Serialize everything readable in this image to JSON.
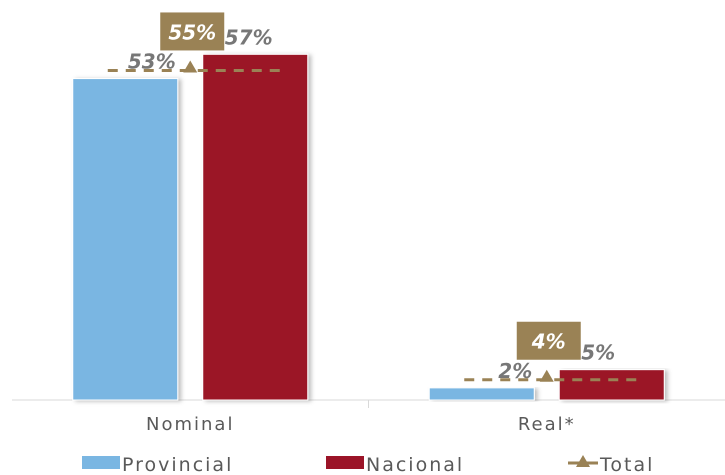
{
  "chart_data": {
    "type": "bar",
    "categories": [
      "Nominal",
      "Real*"
    ],
    "series": [
      {
        "name": "Provincial",
        "type": "bar",
        "values": [
          53,
          2
        ],
        "labels": [
          "53%",
          "2%"
        ]
      },
      {
        "name": "Nacional",
        "type": "bar",
        "values": [
          57,
          5
        ],
        "labels": [
          "57%",
          "5%"
        ]
      },
      {
        "name": "Total",
        "type": "line",
        "values": [
          55,
          4
        ],
        "labels": [
          "55%",
          "4%"
        ]
      }
    ],
    "ylim": [
      0,
      62
    ],
    "grid": false,
    "legend_position": "bottom",
    "colors": {
      "Provincial": "#7ab6e2",
      "Nacional": "#9b1428",
      "Total": "#9a8255",
      "label_text": "#777777",
      "axis": "#d9d9d9",
      "tick_text": "#595959"
    }
  }
}
